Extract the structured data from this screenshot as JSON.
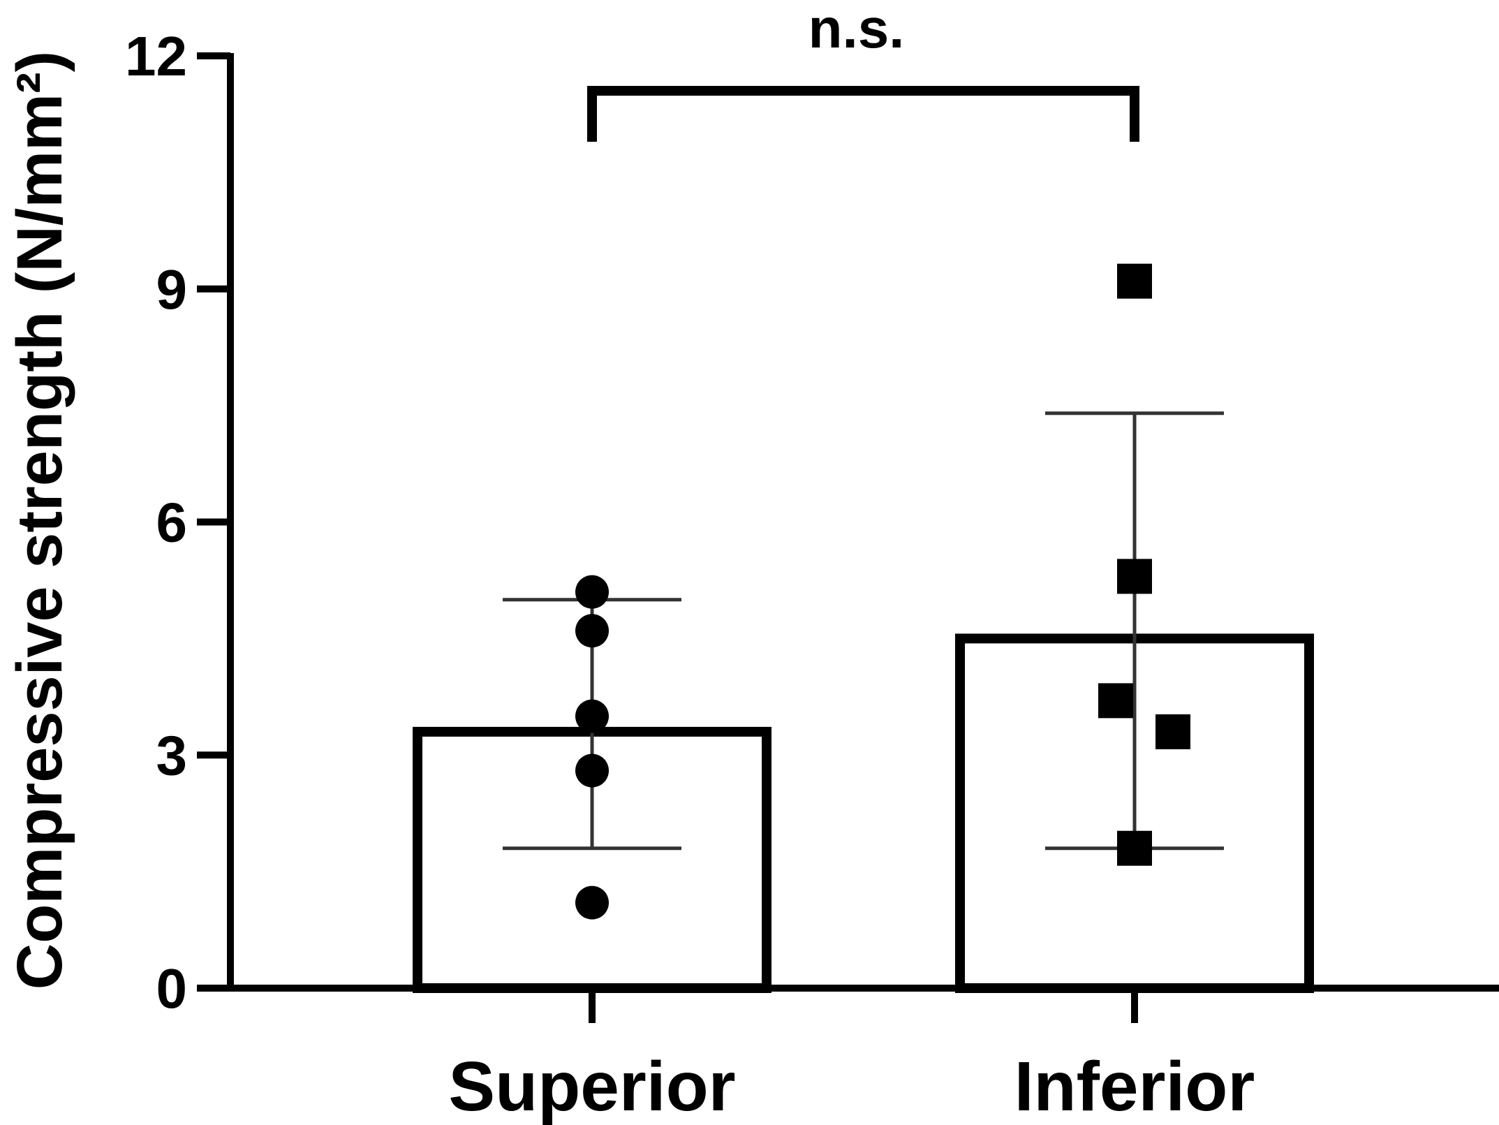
{
  "chart_data": {
    "type": "bar",
    "categories": [
      "Superior",
      "Inferior"
    ],
    "values": [
      3.3,
      4.5
    ],
    "error": {
      "low": [
        1.8,
        1.8
      ],
      "high": [
        5.0,
        7.4
      ]
    },
    "points": [
      {
        "category": "Superior",
        "marker": "circle",
        "values": [
          5.1,
          4.6,
          3.5,
          2.8,
          1.1
        ]
      },
      {
        "category": "Inferior",
        "marker": "square",
        "values": [
          9.1,
          5.3,
          3.7,
          3.3,
          1.8
        ]
      }
    ],
    "ylabel": "Compressive strength (N/mm²)",
    "ylim": [
      0,
      12
    ],
    "yticks": [
      "0",
      "3",
      "6",
      "9",
      "12"
    ],
    "ytick_values": [
      0,
      3,
      6,
      9,
      12
    ],
    "annotation": {
      "text": "n.s.",
      "between": [
        "Superior",
        "Inferior"
      ]
    },
    "grid": false,
    "colors": {
      "bar_fill": "#ffffff",
      "bar_stroke": "#000000",
      "error": "#333333",
      "points": "#000000"
    }
  }
}
